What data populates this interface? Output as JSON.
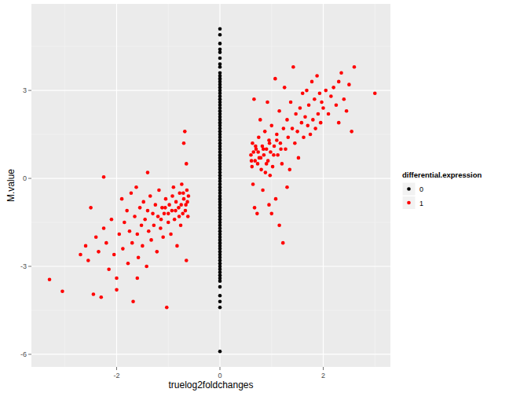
{
  "chart_data": {
    "type": "scatter",
    "x_label": "truelog2foldchanges",
    "y_label": "M.value",
    "legend_title": "differential.expression",
    "xlim": [
      -3.65,
      3.3
    ],
    "ylim": [
      -6.43,
      5.95
    ],
    "xticks": [
      -2,
      0,
      2
    ],
    "yticks": [
      -6,
      -3,
      0,
      3
    ],
    "grid": true,
    "legend": "right",
    "marker": "circle",
    "series": [
      {
        "name": "0",
        "color": "#000000",
        "x": [
          0,
          0,
          0,
          0,
          0,
          0,
          0,
          0,
          0,
          0,
          0,
          0,
          0,
          0,
          0,
          0,
          0,
          0,
          0,
          0,
          0,
          0,
          0,
          0,
          0,
          0,
          0,
          0,
          0,
          0,
          0,
          0,
          0,
          0,
          0,
          0,
          0,
          0,
          0,
          0,
          0,
          0,
          0,
          0,
          0,
          0,
          0,
          0,
          0,
          0,
          0,
          0,
          0,
          0,
          0,
          0,
          0,
          0,
          0,
          0,
          0,
          0,
          0,
          0,
          0,
          0,
          0,
          0,
          0,
          0,
          0,
          0,
          0,
          0,
          0,
          0,
          0,
          0,
          0,
          0,
          0,
          0,
          0,
          0,
          0
        ],
        "values": [
          5.1,
          4.9,
          4.6,
          4.4,
          4.3,
          4.1,
          3.9,
          3.8,
          3.6,
          3.5,
          3.4,
          3.3,
          3.2,
          3.1,
          3.0,
          2.9,
          2.8,
          2.7,
          2.6,
          2.5,
          2.4,
          2.3,
          2.2,
          2.1,
          2.0,
          1.9,
          1.8,
          1.7,
          1.6,
          1.5,
          1.4,
          1.3,
          1.2,
          1.1,
          1.0,
          0.9,
          0.8,
          0.7,
          0.6,
          0.5,
          0.4,
          0.3,
          0.2,
          0.1,
          0,
          -0.1,
          -0.2,
          -0.3,
          -0.4,
          -0.5,
          -0.6,
          -0.7,
          -0.8,
          -0.9,
          -1.0,
          -1.1,
          -1.2,
          -1.3,
          -1.4,
          -1.5,
          -1.6,
          -1.7,
          -1.8,
          -1.9,
          -2.0,
          -2.1,
          -2.2,
          -2.3,
          -2.4,
          -2.5,
          -2.6,
          -2.7,
          -2.8,
          -2.9,
          -3.0,
          -3.1,
          -3.2,
          -3.3,
          -3.4,
          -3.5,
          -3.7,
          -4.0,
          -4.2,
          -4.4,
          -5.9
        ]
      },
      {
        "name": "1",
        "color": "#FF0000",
        "x": [
          -3.3,
          -3.05,
          -2.7,
          -2.6,
          -2.55,
          -2.5,
          -2.45,
          -2.4,
          -2.35,
          -2.3,
          -2.25,
          -2.2,
          -2.15,
          -2.1,
          -2.05,
          -2.0,
          -1.95,
          -1.9,
          -1.88,
          -1.85,
          -1.8,
          -1.78,
          -1.75,
          -1.72,
          -1.7,
          -1.68,
          -1.65,
          -1.62,
          -1.6,
          -1.58,
          -1.55,
          -1.52,
          -1.5,
          -1.48,
          -1.45,
          -1.42,
          -1.4,
          -1.38,
          -1.35,
          -1.33,
          -1.3,
          -1.28,
          -1.25,
          -1.22,
          -1.2,
          -1.18,
          -1.15,
          -1.12,
          -1.1,
          -1.08,
          -1.05,
          -1.03,
          -1.0,
          -0.98,
          -0.95,
          -0.93,
          -0.9,
          -0.88,
          -0.85,
          -0.83,
          -0.8,
          -0.78,
          -0.76,
          -0.74,
          -0.72,
          -0.7,
          -0.68,
          -0.66,
          -0.65,
          -0.64,
          -0.62,
          -0.61,
          -2.25,
          -2.0,
          -1.6,
          -0.7,
          -0.65,
          -1.4,
          -0.63,
          -0.67,
          -0.71,
          -0.75,
          -0.79,
          -0.86,
          -0.92,
          -1.0,
          -1.06,
          -1.14,
          0.6,
          0.62,
          0.63,
          0.64,
          0.65,
          0.66,
          0.67,
          0.68,
          0.7,
          0.72,
          0.73,
          0.75,
          0.76,
          0.78,
          0.8,
          0.82,
          0.83,
          0.85,
          0.87,
          0.88,
          0.9,
          0.92,
          0.93,
          0.95,
          0.97,
          0.98,
          1.0,
          1.02,
          1.05,
          1.07,
          1.08,
          1.1,
          1.12,
          1.15,
          1.17,
          1.2,
          1.22,
          1.23,
          1.25,
          1.27,
          1.3,
          1.32,
          1.35,
          1.37,
          1.4,
          1.42,
          1.45,
          1.47,
          1.5,
          1.52,
          1.55,
          1.58,
          1.6,
          1.62,
          1.65,
          1.68,
          1.7,
          1.72,
          1.75,
          1.78,
          1.8,
          1.83,
          1.85,
          1.88,
          1.9,
          1.93,
          1.95,
          1.97,
          2.0,
          2.05,
          2.1,
          2.15,
          2.2,
          2.25,
          2.3,
          2.35,
          2.4,
          2.5,
          2.55,
          2.6,
          3.0,
          1.15,
          1.0,
          0.95,
          1.3,
          2.3,
          2.45,
          0.61,
          0.69,
          0.74,
          0.79,
          0.84,
          0.9,
          0.96,
          1.04,
          1.1,
          1.18
        ],
        "values": [
          -3.45,
          -3.85,
          -2.6,
          -2.3,
          -2.8,
          -1.0,
          -3.95,
          -2.0,
          -2.5,
          -4.05,
          -1.7,
          -2.2,
          -3.1,
          -1.4,
          -2.6,
          -3.8,
          -1.9,
          -0.7,
          -2.4,
          -1.5,
          -1.1,
          -2.9,
          -1.8,
          -0.5,
          -2.2,
          -4.2,
          -1.3,
          -0.3,
          -1.9,
          -2.7,
          -1.0,
          -1.6,
          -2.3,
          -0.8,
          -1.4,
          -3.0,
          -1.1,
          -1.8,
          -0.6,
          -2.1,
          -1.2,
          -1.6,
          -0.9,
          -2.5,
          -1.3,
          -0.4,
          -1.7,
          -1.0,
          -2.0,
          -1.2,
          -0.7,
          -4.4,
          -1.5,
          -0.9,
          -1.9,
          -1.1,
          -0.3,
          -1.4,
          -0.8,
          -2.3,
          -1.0,
          -0.5,
          -1.6,
          -0.2,
          -1.2,
          -0.7,
          1.6,
          -0.9,
          -2.8,
          -0.4,
          -1.3,
          -0.6,
          0.05,
          -3.4,
          -3.4,
          1.2,
          0.5,
          0.2,
          -0.8,
          -1.1,
          -0.5,
          -0.9,
          -1.3,
          -1.1,
          -0.6,
          -1.2,
          -1.0,
          -1.4,
          0.8,
          0.4,
          1.2,
          -0.2,
          0.9,
          2.7,
          -1.0,
          0.6,
          1.0,
          -1.2,
          0.5,
          1.4,
          0.7,
          2.0,
          0.3,
          1.1,
          -0.4,
          0.8,
          1.6,
          0.2,
          1.0,
          2.6,
          0.6,
          1.3,
          0.1,
          0.9,
          1.8,
          0.4,
          1.1,
          3.4,
          -0.7,
          1.5,
          0.8,
          2.3,
          1.2,
          0.5,
          -2.2,
          1.7,
          3.1,
          1.0,
          2.0,
          1.4,
          0.3,
          2.6,
          1.7,
          3.8,
          1.2,
          2.2,
          1.6,
          0.7,
          2.4,
          1.9,
          2.9,
          1.4,
          2.1,
          3.0,
          1.8,
          2.5,
          1.5,
          3.3,
          2.0,
          2.7,
          1.7,
          3.5,
          2.2,
          2.9,
          1.9,
          2.6,
          2.4,
          3.0,
          2.2,
          2.8,
          3.1,
          2.5,
          3.3,
          3.6,
          2.7,
          3.2,
          1.6,
          3.8,
          2.9,
          -1.6,
          -1.2,
          -0.9,
          -0.3,
          1.9,
          2.3,
          0.6,
          1.1,
          0.9,
          0.7,
          1.0,
          0.5,
          1.2,
          0.8,
          1.3,
          1.0
        ]
      }
    ]
  }
}
